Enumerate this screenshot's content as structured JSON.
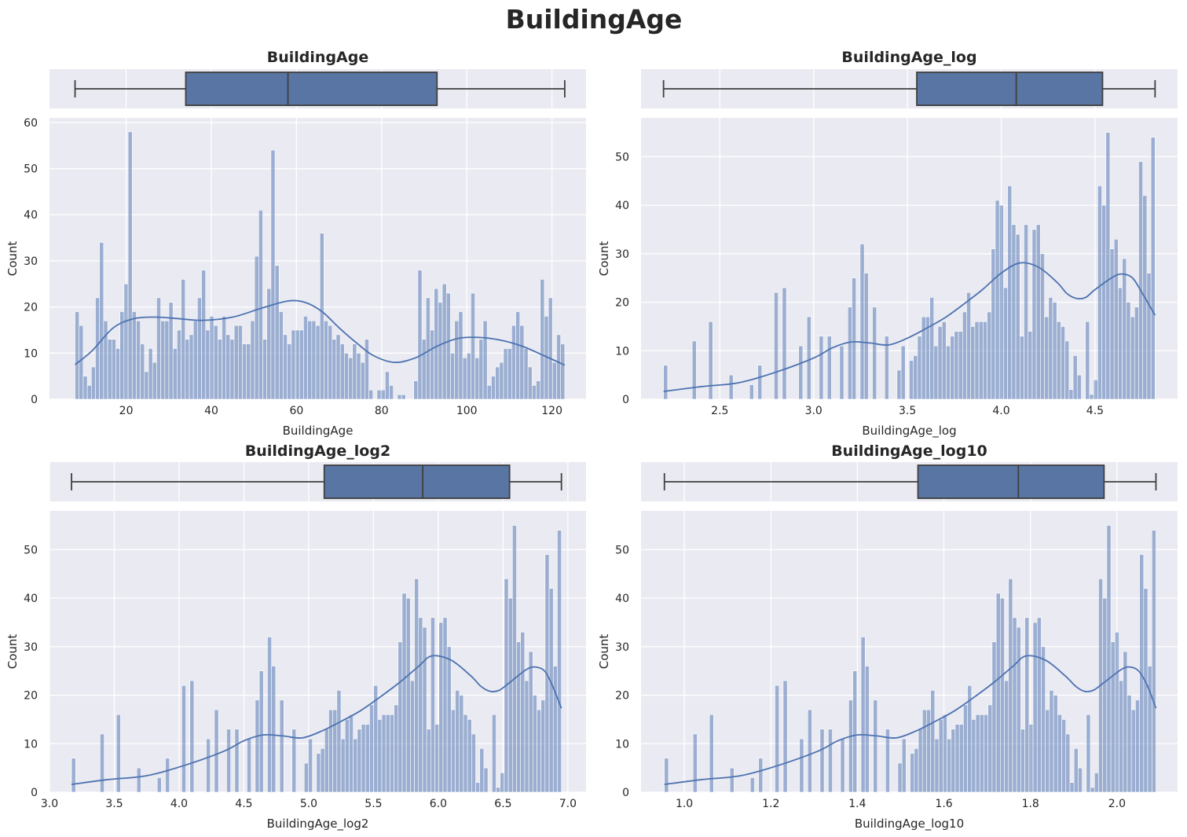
{
  "figure": {
    "title": "BuildingAge"
  },
  "style": {
    "background": "#eaeaf2",
    "grid": "#ffffff",
    "bar_color": "#4c72b0",
    "bar_alpha": 0.5,
    "box_fill": "#5975a4",
    "box_line": "#3f3f3f"
  },
  "chart_data": [
    {
      "type": "histogram",
      "title": "BuildingAge",
      "xlabel": "BuildingAge",
      "ylabel": "Count",
      "xlim": [
        2.0,
        128.0
      ],
      "ylim": [
        0,
        61
      ],
      "xticks": [
        20,
        40,
        60,
        80,
        100,
        120
      ],
      "xtick_labels": [
        "20",
        "40",
        "60",
        "80",
        "100",
        "120"
      ],
      "yticks": [
        0,
        10,
        20,
        30,
        40,
        50,
        60
      ],
      "bins": {
        "start": 8,
        "end": 123,
        "count": 120
      },
      "counts": [
        19,
        16,
        5,
        3,
        7,
        22,
        34,
        17,
        13,
        13,
        11,
        19,
        25,
        58,
        19,
        17,
        12,
        6,
        11,
        8,
        22,
        17,
        17,
        21,
        11,
        15,
        26,
        13,
        14,
        17,
        22,
        28,
        15,
        18,
        16,
        13,
        18,
        14,
        13,
        16,
        16,
        12,
        12,
        17,
        31,
        41,
        13,
        24,
        54,
        29,
        19,
        14,
        12,
        15,
        15,
        15,
        18,
        17,
        17,
        16,
        36,
        17,
        16,
        13,
        14,
        12,
        10,
        9,
        12,
        10,
        8,
        13,
        2,
        0,
        2,
        2,
        6,
        3,
        0,
        1,
        1,
        0,
        0,
        4,
        28,
        13,
        22,
        15,
        24,
        21,
        25,
        23,
        10,
        17,
        19,
        9,
        10,
        23,
        9,
        13,
        17,
        3,
        5,
        7,
        8,
        11,
        11,
        16,
        19,
        16,
        11,
        7,
        3,
        4,
        26,
        18,
        22,
        8,
        14,
        12
      ],
      "kde": [
        [
          8,
          7.5
        ],
        [
          12,
          10.5
        ],
        [
          17,
          15.5
        ],
        [
          22,
          17.5
        ],
        [
          27,
          17.8
        ],
        [
          32,
          17.5
        ],
        [
          38,
          17.1
        ],
        [
          45,
          17.8
        ],
        [
          52,
          19.8
        ],
        [
          58,
          21.3
        ],
        [
          62,
          21.0
        ],
        [
          66,
          19.0
        ],
        [
          70,
          15.5
        ],
        [
          74,
          12.3
        ],
        [
          78,
          9.5
        ],
        [
          83,
          8.0
        ],
        [
          88,
          9.0
        ],
        [
          93,
          11.5
        ],
        [
          98,
          13.2
        ],
        [
          103,
          13.4
        ],
        [
          108,
          12.8
        ],
        [
          113,
          11.5
        ],
        [
          118,
          9.5
        ],
        [
          123,
          7.4
        ]
      ],
      "box": {
        "whislo": 8,
        "q1": 34,
        "med": 58,
        "q3": 93,
        "whishi": 123
      }
    },
    {
      "type": "histogram",
      "title": "BuildingAge_log",
      "xlabel": "BuildingAge_log",
      "ylabel": "Count",
      "xlim": [
        2.08,
        4.94
      ],
      "ylim": [
        0,
        58
      ],
      "xticks": [
        2.5,
        3.0,
        3.5,
        4.0,
        4.5
      ],
      "xtick_labels": [
        "2.5",
        "3.0",
        "3.5",
        "4.0",
        "4.5"
      ],
      "yticks": [
        0,
        10,
        20,
        30,
        40,
        50
      ],
      "bins": {
        "start": 2.2,
        "end": 4.82,
        "count": 120
      },
      "counts": [
        7,
        0,
        0,
        0,
        0,
        0,
        0,
        12,
        0,
        0,
        0,
        16,
        0,
        0,
        0,
        0,
        5,
        0,
        0,
        0,
        0,
        3,
        0,
        7,
        0,
        0,
        0,
        22,
        0,
        23,
        0,
        0,
        0,
        11,
        0,
        17,
        0,
        0,
        13,
        0,
        13,
        0,
        0,
        11,
        0,
        19,
        25,
        0,
        32,
        26,
        0,
        19,
        0,
        0,
        13,
        0,
        0,
        6,
        11,
        0,
        8,
        9,
        13,
        17,
        17,
        21,
        11,
        15,
        16,
        11,
        13,
        14,
        14,
        18,
        22,
        15,
        16,
        16,
        16,
        18,
        31,
        41,
        40,
        23,
        44,
        36,
        34,
        13,
        36,
        14,
        35,
        36,
        30,
        17,
        21,
        20,
        16,
        15,
        12,
        2,
        9,
        5,
        0,
        16,
        1,
        4,
        44,
        40,
        55,
        31,
        33,
        23,
        29,
        20,
        17,
        19,
        49,
        42,
        26,
        54
      ],
      "kde": [
        [
          2.2,
          1.6
        ],
        [
          2.4,
          2.6
        ],
        [
          2.6,
          3.4
        ],
        [
          2.8,
          5.6
        ],
        [
          3.0,
          8.5
        ],
        [
          3.1,
          10.6
        ],
        [
          3.2,
          11.8
        ],
        [
          3.3,
          11.6
        ],
        [
          3.4,
          11.2
        ],
        [
          3.5,
          12.6
        ],
        [
          3.6,
          14.6
        ],
        [
          3.7,
          16.8
        ],
        [
          3.8,
          19.6
        ],
        [
          3.9,
          22.6
        ],
        [
          4.0,
          26.0
        ],
        [
          4.1,
          28.1
        ],
        [
          4.2,
          27.2
        ],
        [
          4.3,
          24.0
        ],
        [
          4.35,
          21.8
        ],
        [
          4.4,
          20.8
        ],
        [
          4.45,
          21.0
        ],
        [
          4.5,
          22.6
        ],
        [
          4.6,
          25.3
        ],
        [
          4.65,
          25.8
        ],
        [
          4.7,
          25.0
        ],
        [
          4.75,
          22.0
        ],
        [
          4.82,
          17.3
        ]
      ],
      "box": {
        "whislo": 2.2,
        "q1": 3.55,
        "med": 4.08,
        "q3": 4.54,
        "whishi": 4.82
      }
    },
    {
      "type": "histogram",
      "title": "BuildingAge_log2",
      "xlabel": "BuildingAge_log2",
      "ylabel": "Count",
      "xlim": [
        3.0,
        7.14
      ],
      "ylim": [
        0,
        58
      ],
      "xticks": [
        3.0,
        3.5,
        4.0,
        4.5,
        5.0,
        5.5,
        6.0,
        6.5,
        7.0
      ],
      "xtick_labels": [
        "3.0",
        "3.5",
        "4.0",
        "4.5",
        "5.0",
        "5.5",
        "6.0",
        "6.5",
        "7.0"
      ],
      "yticks": [
        0,
        10,
        20,
        30,
        40,
        50
      ],
      "bins": {
        "start": 3.17,
        "end": 6.95,
        "count": 120
      },
      "counts": [
        7,
        0,
        0,
        0,
        0,
        0,
        0,
        12,
        0,
        0,
        0,
        16,
        0,
        0,
        0,
        0,
        5,
        0,
        0,
        0,
        0,
        3,
        0,
        7,
        0,
        0,
        0,
        22,
        0,
        23,
        0,
        0,
        0,
        11,
        0,
        17,
        0,
        0,
        13,
        0,
        13,
        0,
        0,
        11,
        0,
        19,
        25,
        0,
        32,
        26,
        0,
        19,
        0,
        0,
        13,
        0,
        0,
        6,
        11,
        0,
        8,
        9,
        13,
        17,
        17,
        21,
        11,
        15,
        16,
        11,
        13,
        14,
        14,
        18,
        22,
        15,
        16,
        16,
        16,
        18,
        31,
        41,
        40,
        23,
        44,
        36,
        34,
        13,
        36,
        14,
        35,
        36,
        30,
        17,
        21,
        20,
        16,
        15,
        12,
        2,
        9,
        5,
        0,
        16,
        1,
        4,
        44,
        40,
        55,
        31,
        33,
        23,
        29,
        20,
        17,
        19,
        49,
        42,
        26,
        54
      ],
      "kde": [
        [
          3.17,
          1.6
        ],
        [
          3.45,
          2.6
        ],
        [
          3.75,
          3.4
        ],
        [
          4.05,
          5.6
        ],
        [
          4.35,
          8.5
        ],
        [
          4.5,
          10.6
        ],
        [
          4.65,
          11.8
        ],
        [
          4.8,
          11.6
        ],
        [
          4.95,
          11.2
        ],
        [
          5.1,
          12.6
        ],
        [
          5.25,
          14.6
        ],
        [
          5.4,
          16.8
        ],
        [
          5.55,
          19.6
        ],
        [
          5.7,
          22.6
        ],
        [
          5.85,
          26.0
        ],
        [
          5.95,
          28.1
        ],
        [
          6.1,
          27.2
        ],
        [
          6.25,
          24.0
        ],
        [
          6.33,
          21.8
        ],
        [
          6.4,
          20.8
        ],
        [
          6.47,
          21.0
        ],
        [
          6.55,
          22.6
        ],
        [
          6.68,
          25.3
        ],
        [
          6.75,
          25.8
        ],
        [
          6.82,
          25.0
        ],
        [
          6.88,
          22.0
        ],
        [
          6.95,
          17.3
        ]
      ],
      "box": {
        "whislo": 3.17,
        "q1": 5.12,
        "med": 5.88,
        "q3": 6.55,
        "whishi": 6.95
      }
    },
    {
      "type": "histogram",
      "title": "BuildingAge_log10",
      "xlabel": "BuildingAge_log10",
      "ylabel": "Count",
      "xlim": [
        0.9,
        2.14
      ],
      "ylim": [
        0,
        58
      ],
      "xticks": [
        1.0,
        1.2,
        1.4,
        1.6,
        1.8,
        2.0
      ],
      "xtick_labels": [
        "1.0",
        "1.2",
        "1.4",
        "1.6",
        "1.8",
        "2.0"
      ],
      "yticks": [
        0,
        10,
        20,
        30,
        40,
        50
      ],
      "bins": {
        "start": 0.954,
        "end": 2.09,
        "count": 120
      },
      "counts": [
        7,
        0,
        0,
        0,
        0,
        0,
        0,
        12,
        0,
        0,
        0,
        16,
        0,
        0,
        0,
        0,
        5,
        0,
        0,
        0,
        0,
        3,
        0,
        7,
        0,
        0,
        0,
        22,
        0,
        23,
        0,
        0,
        0,
        11,
        0,
        17,
        0,
        0,
        13,
        0,
        13,
        0,
        0,
        11,
        0,
        19,
        25,
        0,
        32,
        26,
        0,
        19,
        0,
        0,
        13,
        0,
        0,
        6,
        11,
        0,
        8,
        9,
        13,
        17,
        17,
        21,
        11,
        15,
        16,
        11,
        13,
        14,
        14,
        18,
        22,
        15,
        16,
        16,
        16,
        18,
        31,
        41,
        40,
        23,
        44,
        36,
        34,
        13,
        36,
        14,
        35,
        36,
        30,
        17,
        21,
        20,
        16,
        15,
        12,
        2,
        9,
        5,
        0,
        16,
        1,
        4,
        44,
        40,
        55,
        31,
        33,
        23,
        29,
        20,
        17,
        19,
        49,
        42,
        26,
        54
      ],
      "kde": [
        [
          0.954,
          1.6
        ],
        [
          1.04,
          2.6
        ],
        [
          1.13,
          3.4
        ],
        [
          1.22,
          5.6
        ],
        [
          1.31,
          8.5
        ],
        [
          1.355,
          10.6
        ],
        [
          1.4,
          11.8
        ],
        [
          1.445,
          11.6
        ],
        [
          1.49,
          11.2
        ],
        [
          1.535,
          12.6
        ],
        [
          1.58,
          14.6
        ],
        [
          1.625,
          16.8
        ],
        [
          1.67,
          19.6
        ],
        [
          1.715,
          22.6
        ],
        [
          1.76,
          26.0
        ],
        [
          1.79,
          28.1
        ],
        [
          1.835,
          27.2
        ],
        [
          1.88,
          24.0
        ],
        [
          1.905,
          21.8
        ],
        [
          1.925,
          20.8
        ],
        [
          1.945,
          21.0
        ],
        [
          1.97,
          22.6
        ],
        [
          2.01,
          25.3
        ],
        [
          2.03,
          25.8
        ],
        [
          2.05,
          25.0
        ],
        [
          2.07,
          22.0
        ],
        [
          2.09,
          17.3
        ]
      ],
      "box": {
        "whislo": 0.954,
        "q1": 1.54,
        "med": 1.772,
        "q3": 1.97,
        "whishi": 2.09
      }
    }
  ]
}
